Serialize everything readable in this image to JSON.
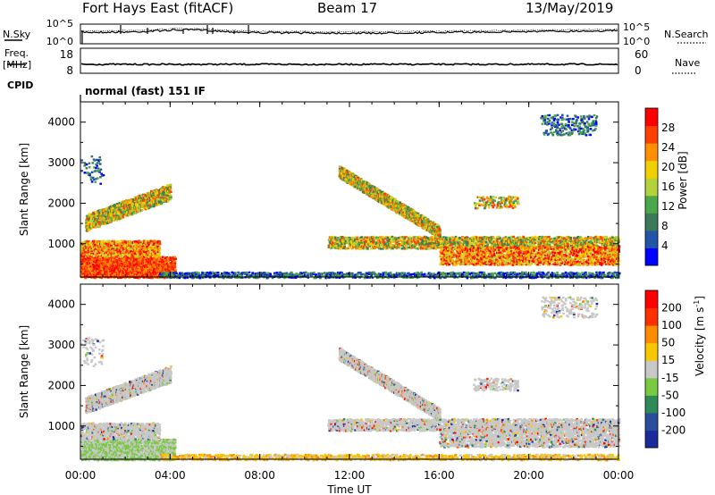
{
  "header": {
    "title": "Fort Hays East (fitACF)",
    "beam": "Beam 17",
    "date": "13/May/2019"
  },
  "top_panels": {
    "nsky_label": "N.Sky",
    "nsearch_label": "N.Search",
    "noise_ticks": [
      "10^5",
      "10^0"
    ],
    "freq_label_1": "Freq.",
    "freq_label_2": "[MHz]",
    "freq_ticks": [
      "18",
      "8"
    ],
    "nave_label": "Nave",
    "nave_ticks": [
      "60",
      "0"
    ],
    "cpid_label": "CPID",
    "cpid_text": "normal (fast) 151 IF"
  },
  "chart_data": [
    {
      "type": "heatmap",
      "title": "",
      "xlabel": "Time UT",
      "ylabel": "Slant Range [km]",
      "xticks": [
        "00:00",
        "04:00",
        "08:00",
        "12:00",
        "16:00",
        "20:00",
        "00:00"
      ],
      "xlim": [
        0,
        24
      ],
      "ylim": [
        180,
        4500
      ],
      "yticks": [
        1000,
        2000,
        3000,
        4000
      ],
      "colorbar": {
        "label": "Power [dB]",
        "ticks": [
          "28",
          "24",
          "20",
          "16",
          "12",
          "8",
          "4"
        ],
        "range": [
          0,
          30
        ],
        "colors": [
          "#0000ff",
          "#2255aa",
          "#3a7a5a",
          "#4aa84a",
          "#b4d23c",
          "#f0d000",
          "#ff9000",
          "#ff4000",
          "#ff0000"
        ]
      }
    },
    {
      "type": "heatmap",
      "title": "",
      "xlabel": "Time UT",
      "ylabel": "Slant Range [km]",
      "xticks": [
        "00:00",
        "04:00",
        "08:00",
        "12:00",
        "16:00",
        "20:00",
        "00:00"
      ],
      "xlim": [
        0,
        24
      ],
      "ylim": [
        180,
        4500
      ],
      "yticks": [
        1000,
        2000,
        3000,
        4000
      ],
      "colorbar": {
        "label_main": "Velocity [m s",
        "label_exp": "-1",
        "label_end": "]",
        "ticks": [
          "200",
          "100",
          "50",
          "15",
          "-15",
          "-50",
          "-100",
          "-200"
        ],
        "colors": [
          "#1a2a9a",
          "#2c4c9c",
          "#2e8b57",
          "#7ac943",
          "#c8c8c8",
          "#f7c800",
          "#ff8c00",
          "#ff3000",
          "#ff0000"
        ]
      }
    }
  ]
}
